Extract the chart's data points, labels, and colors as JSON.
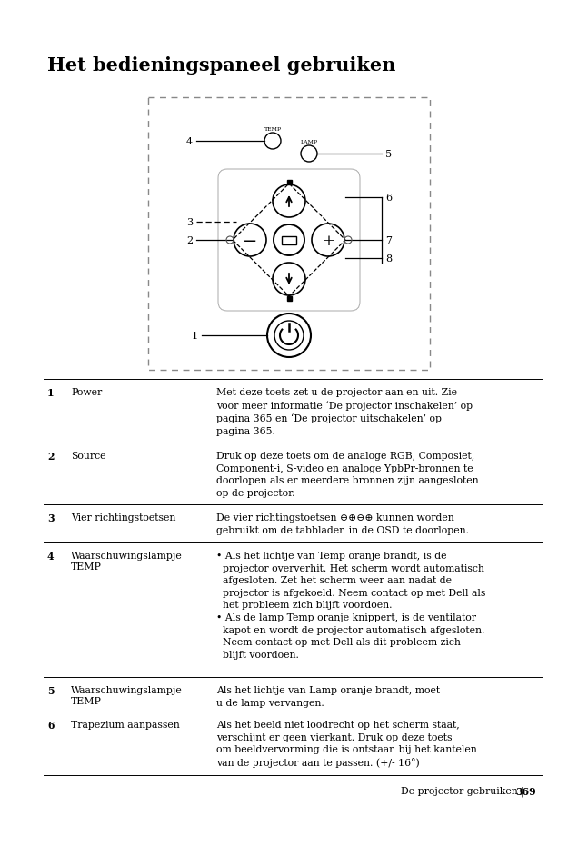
{
  "title": "Het bedieningspaneel gebruiken",
  "bg_color": "#ffffff",
  "footer_left": "De projector gebruiken",
  "footer_sep": "|",
  "footer_page": "369",
  "rows": [
    {
      "num": "1",
      "label": "Power",
      "desc": "Met deze toets zet u de projector aan en uit. Zie\nvoor meer informatie ‘De projector inschakelen’ op\npagina 365 en ‘De projector uitschakelen’ op\npagina 365.",
      "label2": ""
    },
    {
      "num": "2",
      "label": "Source",
      "desc": "Druk op deze toets om de analoge RGB, Composiet,\nComponent-i, S-video en analoge YpbPr-bronnen te\ndoorlopen als er meerdere bronnen zijn aangesloten\nop de projector.",
      "label2": ""
    },
    {
      "num": "3",
      "label": "Vier richtingstoetsen",
      "desc": "De vier richtingstoetsen ⊕⊕⊖⊕ kunnen worden\ngebruikt om de tabbladen in de OSD te doorlopen.",
      "label2": ""
    },
    {
      "num": "4",
      "label": "Waarschuwingslampje",
      "label2": "TEMP",
      "desc": "• Als het lichtje van Temp oranje brandt, is de\n  projector oververhit. Het scherm wordt automatisch\n  afgesloten. Zet het scherm weer aan nadat de\n  projector is afgekoeld. Neem contact op met Dell als\n  het probleem zich blijft voordoen.\n• Als de lamp Temp oranje knippert, is de ventilator\n  kapot en wordt de projector automatisch afgesloten.\n  Neem contact op met Dell als dit probleem zich\n  blijft voordoen."
    },
    {
      "num": "5",
      "label": "Waarschuwingslampje",
      "label2": "TEMP",
      "desc": "Als het lichtje van Lamp oranje brandt, moet\nu de lamp vervangen."
    },
    {
      "num": "6",
      "label": "Trapezium aanpassen",
      "label2": "",
      "desc": "Als het beeld niet loodrecht op het scherm staat,\nverschijnt er geen vierkant. Druk op deze toets\nom beeldvervorming die is ontstaan bij het kantelen\nvan de projector aan te passen. (+/- 16°)"
    }
  ]
}
